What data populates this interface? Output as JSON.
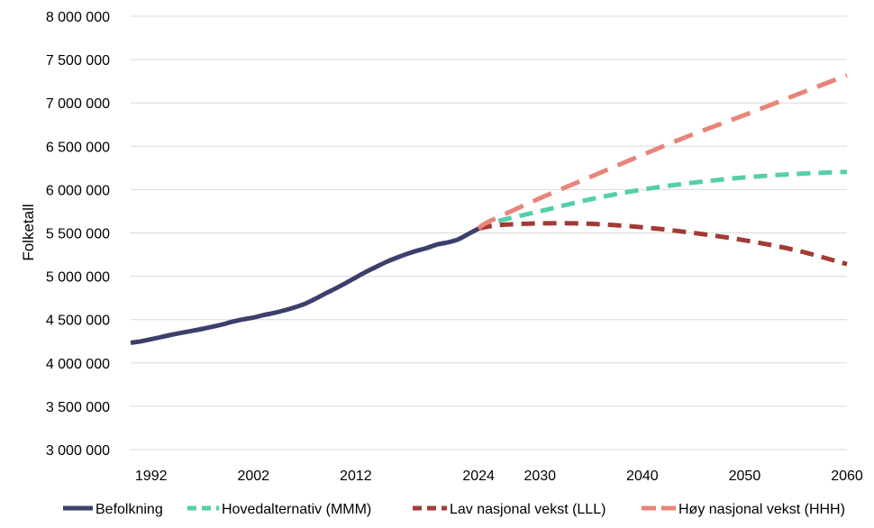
{
  "chart_data": {
    "type": "line",
    "title": "",
    "xlabel": "",
    "ylabel": "Folketall",
    "ylim": [
      3000000,
      8000000
    ],
    "yticks": [
      3000000,
      3500000,
      4000000,
      4500000,
      5000000,
      5500000,
      6000000,
      6500000,
      7000000,
      7500000,
      8000000
    ],
    "ytick_labels": [
      "3 000 000",
      "3 500 000",
      "4 000 000",
      "4 500 000",
      "5 000 000",
      "5 500 000",
      "6 000 000",
      "6 500 000",
      "7 000 000",
      "7 500 000",
      "8 000 000"
    ],
    "xticks": [
      1992,
      2002,
      2012,
      2024,
      2030,
      2040,
      2050,
      2060
    ],
    "xtick_labels": [
      "1992",
      "2002",
      "2012",
      "2024",
      "2030",
      "2040",
      "2050",
      "2060"
    ],
    "grid": true,
    "legend_position": "bottom",
    "series": [
      {
        "name": "Befolkning",
        "color": "#3b3f6b",
        "style": "solid",
        "x": [
          1990,
          1991,
          1992,
          1993,
          1994,
          1995,
          1996,
          1997,
          1998,
          1999,
          2000,
          2001,
          2002,
          2003,
          2004,
          2005,
          2006,
          2007,
          2008,
          2009,
          2010,
          2011,
          2012,
          2013,
          2014,
          2015,
          2016,
          2017,
          2018,
          2019,
          2020,
          2021,
          2022,
          2023,
          2024
        ],
        "values": [
          4233000,
          4250000,
          4274000,
          4299000,
          4325000,
          4348000,
          4370000,
          4393000,
          4418000,
          4445000,
          4478000,
          4503000,
          4524000,
          4552000,
          4577000,
          4606000,
          4640000,
          4681000,
          4737000,
          4799000,
          4858000,
          4920000,
          4986000,
          5051000,
          5109000,
          5166000,
          5214000,
          5258000,
          5295000,
          5328000,
          5368000,
          5391000,
          5425000,
          5488000,
          5550000
        ]
      },
      {
        "name": "Hovedalternativ (MMM)",
        "color": "#55cfab",
        "style": "dashed",
        "x": [
          2024,
          2025,
          2030,
          2035,
          2040,
          2045,
          2050,
          2055,
          2060
        ],
        "values": [
          5550000,
          5610000,
          5750000,
          5890000,
          6000000,
          6080000,
          6140000,
          6180000,
          6205000
        ]
      },
      {
        "name": "Lav nasjonal vekst (LLL)",
        "color": "#a33a35",
        "style": "dashed",
        "x": [
          2024,
          2026,
          2030,
          2035,
          2040,
          2045,
          2050,
          2055,
          2060
        ],
        "values": [
          5550000,
          5590000,
          5610000,
          5605000,
          5565000,
          5500000,
          5415000,
          5300000,
          5140000
        ]
      },
      {
        "name": "Høy nasjonal vekst (HHH)",
        "color": "#e9847a",
        "style": "dashed",
        "x": [
          2024,
          2025,
          2030,
          2035,
          2040,
          2045,
          2050,
          2055,
          2060
        ],
        "values": [
          5550000,
          5630000,
          5900000,
          6150000,
          6400000,
          6640000,
          6860000,
          7090000,
          7320000
        ]
      }
    ]
  }
}
